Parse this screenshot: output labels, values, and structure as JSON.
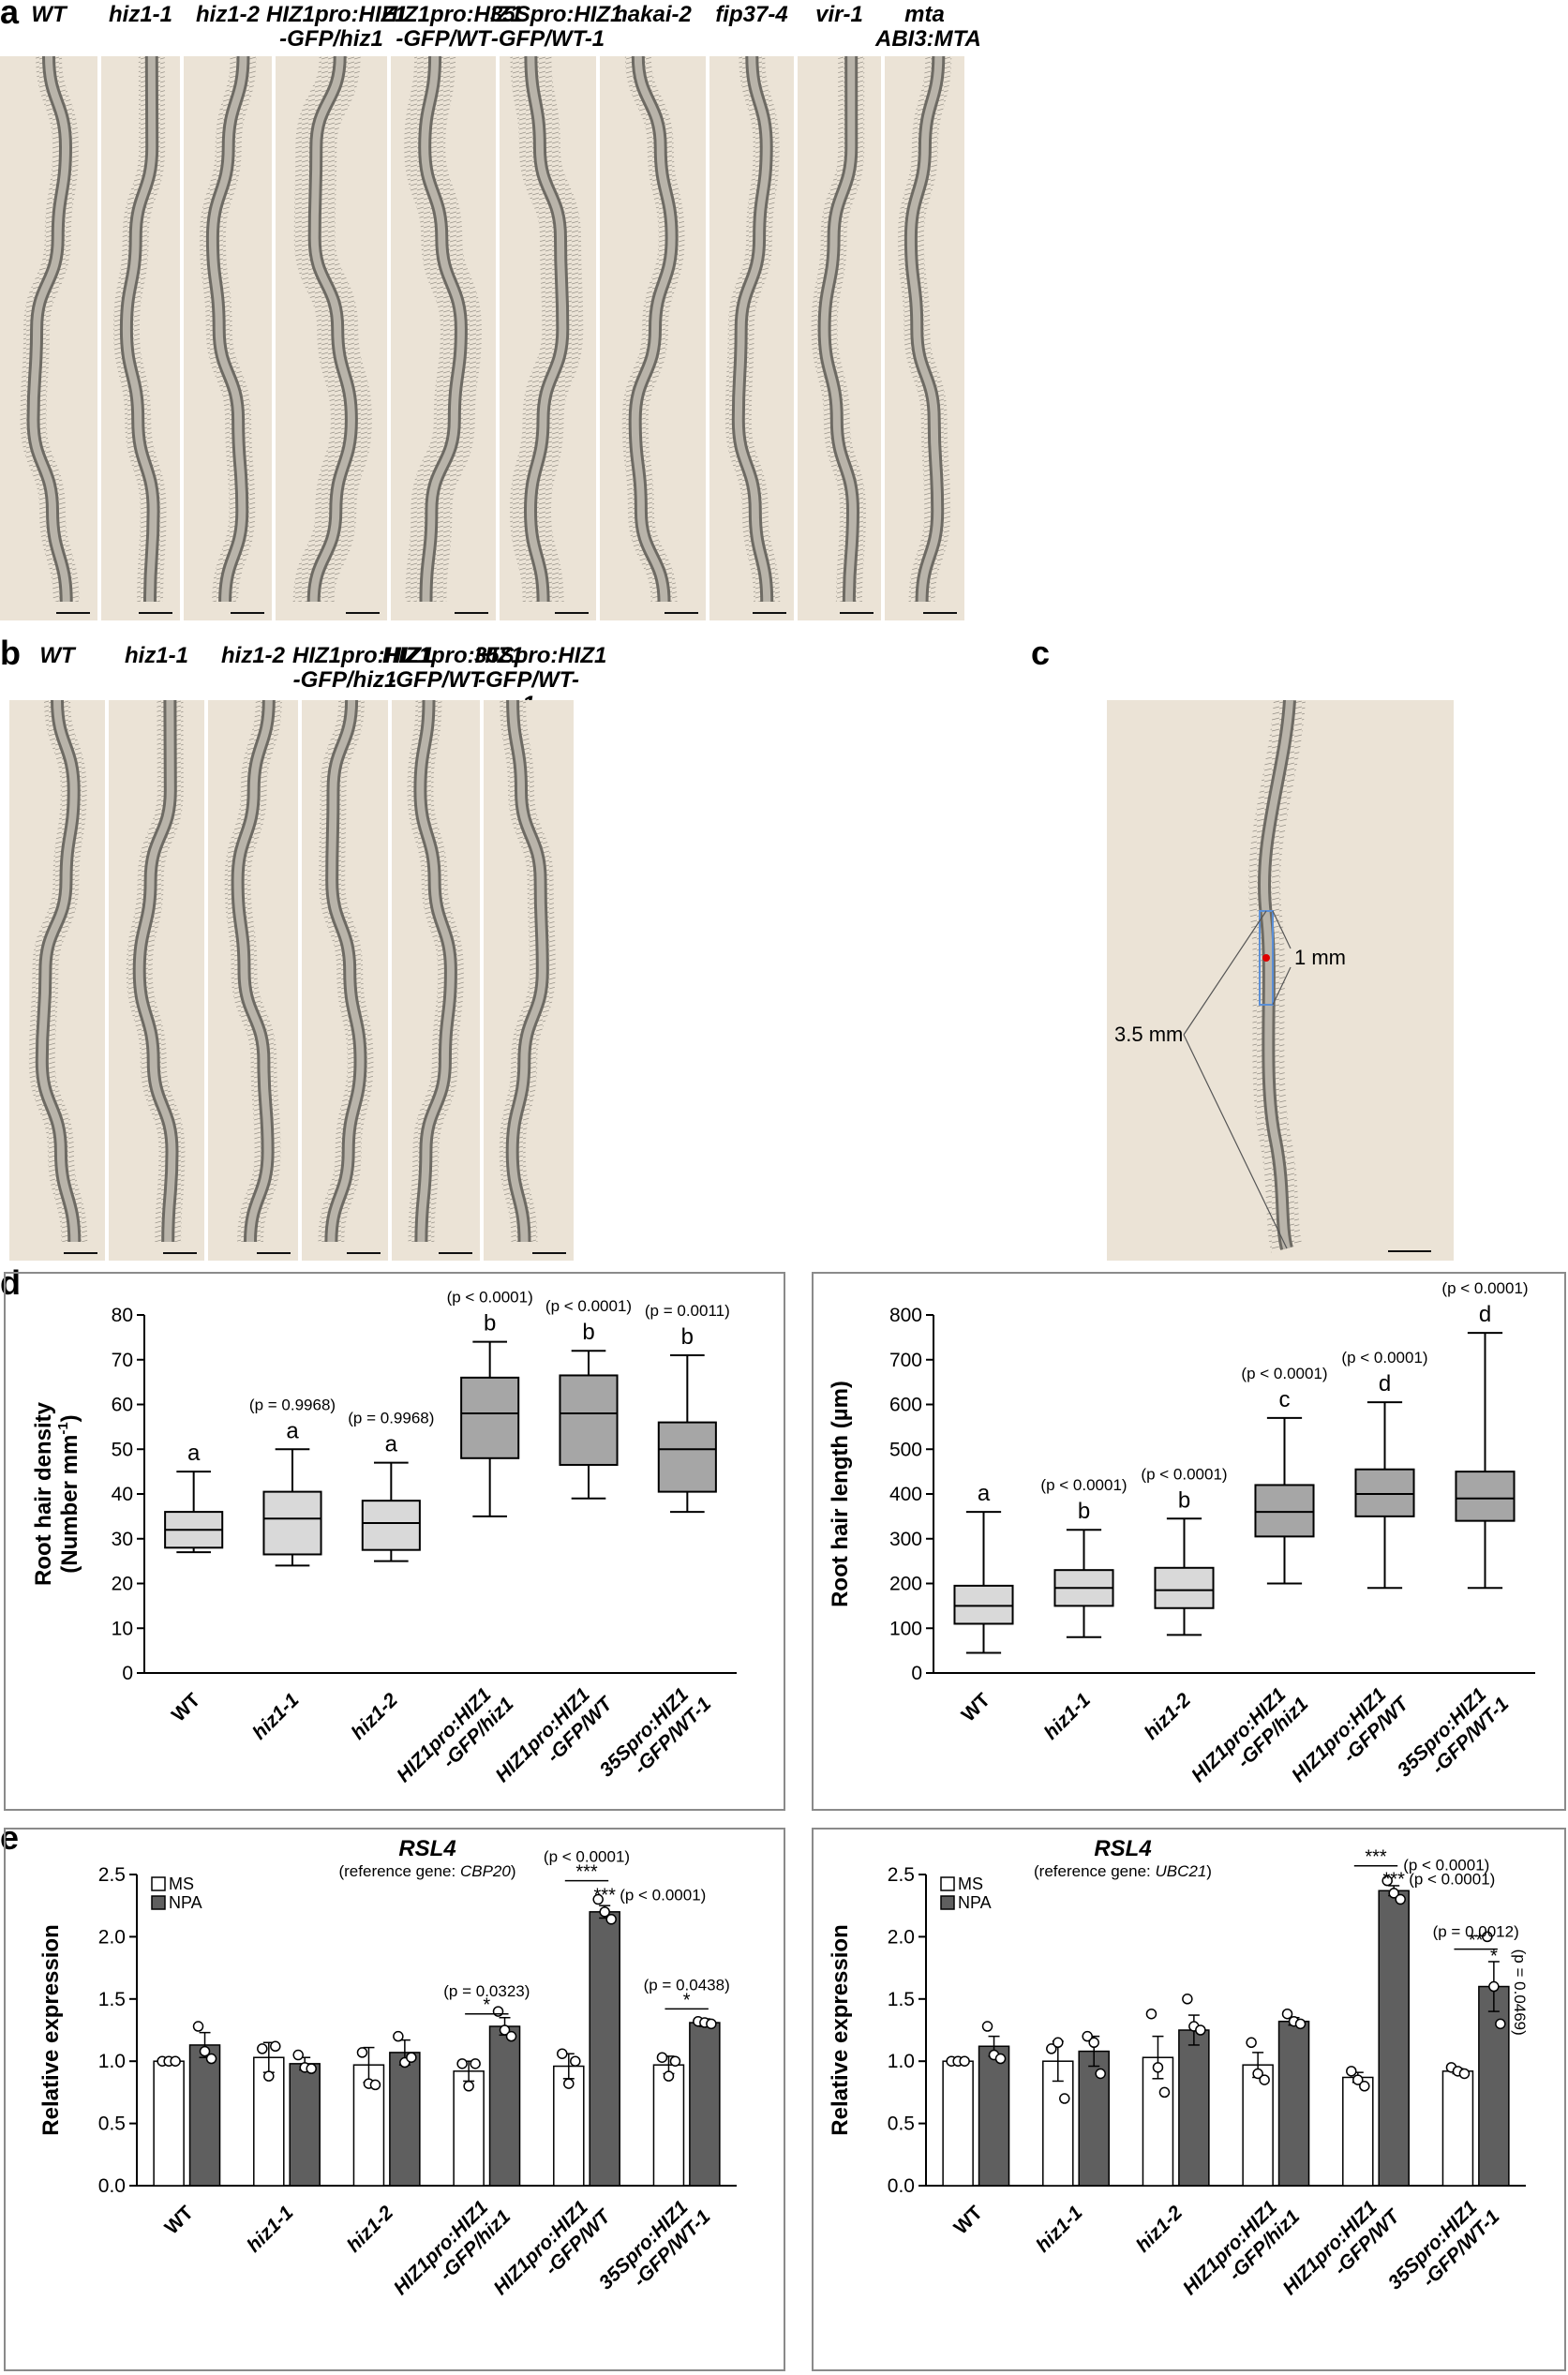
{
  "panels": {
    "a": {
      "label": "a",
      "titles": [
        [
          "WT",
          ""
        ],
        [
          "hiz1-1",
          ""
        ],
        [
          "hiz1-2",
          ""
        ],
        [
          "HIZ1pro:HIZ1",
          "-GFP/hiz1"
        ],
        [
          "HIZ1pro:HIZ1",
          "-GFP/WT"
        ],
        [
          "35Spro:HIZ1",
          "-GFP/WT-1"
        ],
        [
          "hakai-2",
          ""
        ],
        [
          "fip37-4",
          ""
        ],
        [
          "vir-1",
          ""
        ],
        [
          "mta",
          "ABI3:MTA"
        ]
      ]
    },
    "b": {
      "label": "b",
      "titles": [
        [
          "WT",
          ""
        ],
        [
          "hiz1-1",
          ""
        ],
        [
          "hiz1-2",
          ""
        ],
        [
          "HIZ1pro:HIZ1",
          "-GFP/hiz1"
        ],
        [
          "HIZ1pro:HIZ1",
          "-GFP/WT"
        ],
        [
          "35Spro:HIZ1",
          "-GFP/WT-1"
        ]
      ]
    },
    "c": {
      "label": "c",
      "annot_1mm": "1 mm",
      "annot_35mm": "3.5 mm"
    },
    "d": {
      "label": "d"
    },
    "e": {
      "label": "e"
    }
  },
  "chart_data": [
    {
      "type": "box",
      "ylabel_line1": "Root hair density",
      "ylabel_line2": "(Number mm",
      "ylabel_sup": "-1",
      "ylabel_close": ")",
      "ylim": [
        0,
        80
      ],
      "yticks": [
        "0",
        "10",
        "20",
        "30",
        "40",
        "50",
        "60",
        "70",
        "80"
      ],
      "categories": [
        [
          "WT",
          ""
        ],
        [
          "hiz1-1",
          ""
        ],
        [
          "hiz1-2",
          ""
        ],
        [
          "HIZ1pro:HIZ1",
          "-GFP/hiz1"
        ],
        [
          "HIZ1pro:HIZ1",
          "-GFP/WT"
        ],
        [
          "35Spro:HIZ1",
          "-GFP/WT-1"
        ]
      ],
      "boxes": [
        {
          "min": 27,
          "q1": 28,
          "median": 32,
          "q3": 36,
          "max": 45,
          "letter": "a",
          "p": ""
        },
        {
          "min": 24,
          "q1": 26.5,
          "median": 34.5,
          "q3": 40.5,
          "max": 50,
          "letter": "a",
          "p": "(p = 0.9968)"
        },
        {
          "min": 25,
          "q1": 27.5,
          "median": 33.5,
          "q3": 38.5,
          "max": 47,
          "letter": "a",
          "p": "(p = 0.9968)"
        },
        {
          "min": 35,
          "q1": 48,
          "median": 58,
          "q3": 66,
          "max": 74,
          "letter": "b",
          "p": "(p < 0.0001)"
        },
        {
          "min": 39,
          "q1": 46.5,
          "median": 58,
          "q3": 66.5,
          "max": 72,
          "letter": "b",
          "p": "(p < 0.0001)"
        },
        {
          "min": 36,
          "q1": 40.5,
          "median": 50,
          "q3": 56,
          "max": 71,
          "letter": "b",
          "p": "(p = 0.0011)"
        }
      ],
      "colors": {
        "light": "#d9d9d9",
        "dark": "#a6a6a6"
      }
    },
    {
      "type": "box",
      "ylabel": "Root hair length (µm)",
      "ylim": [
        0,
        800
      ],
      "yticks": [
        "0",
        "100",
        "200",
        "300",
        "400",
        "500",
        "600",
        "700",
        "800"
      ],
      "categories": [
        [
          "WT",
          ""
        ],
        [
          "hiz1-1",
          ""
        ],
        [
          "hiz1-2",
          ""
        ],
        [
          "HIZ1pro:HIZ1",
          "-GFP/hiz1"
        ],
        [
          "HIZ1pro:HIZ1",
          "-GFP/WT"
        ],
        [
          "35Spro:HIZ1",
          "-GFP/WT-1"
        ]
      ],
      "boxes": [
        {
          "min": 45,
          "q1": 110,
          "median": 150,
          "q3": 195,
          "max": 360,
          "letter": "a",
          "p": ""
        },
        {
          "min": 80,
          "q1": 150,
          "median": 190,
          "q3": 230,
          "max": 320,
          "letter": "b",
          "p": "(p < 0.0001)"
        },
        {
          "min": 85,
          "q1": 145,
          "median": 185,
          "q3": 235,
          "max": 345,
          "letter": "b",
          "p": "(p < 0.0001)"
        },
        {
          "min": 200,
          "q1": 305,
          "median": 360,
          "q3": 420,
          "max": 570,
          "letter": "c",
          "p": "(p < 0.0001)"
        },
        {
          "min": 190,
          "q1": 350,
          "median": 400,
          "q3": 455,
          "max": 605,
          "letter": "d",
          "p": "(p < 0.0001)"
        },
        {
          "min": 190,
          "q1": 340,
          "median": 390,
          "q3": 450,
          "max": 760,
          "letter": "d",
          "p": "(p < 0.0001)"
        }
      ],
      "colors": {
        "light": "#d9d9d9",
        "dark": "#a6a6a6"
      }
    },
    {
      "type": "bar",
      "title": "RSL4",
      "subtitle_pre": "(reference gene: ",
      "subtitle_gene": "CBP20",
      "subtitle_post": ")",
      "ylabel": "Relative expression",
      "ylim": [
        0,
        2.5
      ],
      "yticks": [
        "0.0",
        "0.5",
        "1.0",
        "1.5",
        "2.0",
        "2.5"
      ],
      "legend": [
        "MS",
        "NPA"
      ],
      "categories": [
        [
          "WT",
          ""
        ],
        [
          "hiz1-1",
          ""
        ],
        [
          "hiz1-2",
          ""
        ],
        [
          "HIZ1pro:HIZ1",
          "-GFP/hiz1"
        ],
        [
          "HIZ1pro:HIZ1",
          "-GFP/WT"
        ],
        [
          "35Spro:HIZ1",
          "-GFP/WT-1"
        ]
      ],
      "series": [
        {
          "name": "MS",
          "values": [
            1.0,
            1.03,
            0.97,
            0.92,
            0.96,
            0.97
          ],
          "err": [
            0.0,
            0.12,
            0.14,
            0.08,
            0.1,
            0.07
          ],
          "points": [
            [
              1,
              1,
              1
            ],
            [
              1.1,
              0.88,
              1.12
            ],
            [
              1.07,
              0.82,
              0.81
            ],
            [
              0.98,
              0.8,
              0.98
            ],
            [
              1.06,
              0.82,
              1.0
            ],
            [
              1.03,
              0.88,
              1.0
            ]
          ],
          "color": "#ffffff"
        },
        {
          "name": "NPA",
          "values": [
            1.13,
            0.98,
            1.07,
            1.28,
            2.2,
            1.31
          ],
          "err": [
            0.1,
            0.05,
            0.1,
            0.07,
            0.05,
            0.03
          ],
          "points": [
            [
              1.28,
              1.08,
              1.02
            ],
            [
              1.05,
              0.95,
              0.94
            ],
            [
              1.2,
              0.99,
              1.03
            ],
            [
              1.4,
              1.25,
              1.2
            ],
            [
              2.3,
              2.2,
              2.14
            ],
            [
              1.32,
              1.31,
              1.3
            ]
          ],
          "color": "#5f5f5f"
        }
      ],
      "annotations": [
        {
          "cat": 3,
          "type": "pair",
          "y": 1.38,
          "stars": "*",
          "p": "(p = 0.0323)",
          "py": 1.52
        },
        {
          "cat": 5,
          "type": "pair",
          "y": 1.42,
          "stars": "*",
          "p": "(p = 0.0438)",
          "py": 1.57
        },
        {
          "cat": 4,
          "type": "pair",
          "y": 2.45,
          "stars": "***",
          "p": "(p < 0.0001)",
          "py": 2.6
        },
        {
          "cat": 4,
          "type": "single",
          "y": 2.33,
          "stars": "***",
          "p": "(p < 0.0001)",
          "side": "right"
        }
      ]
    },
    {
      "type": "bar",
      "title": "RSL4",
      "subtitle_pre": "(reference gene: ",
      "subtitle_gene": "UBC21",
      "subtitle_post": ")",
      "ylabel": "Relative expression",
      "ylim": [
        0,
        2.5
      ],
      "yticks": [
        "0.0",
        "0.5",
        "1.0",
        "1.5",
        "2.0",
        "2.5"
      ],
      "legend": [
        "MS",
        "NPA"
      ],
      "categories": [
        [
          "WT",
          ""
        ],
        [
          "hiz1-1",
          ""
        ],
        [
          "hiz1-2",
          ""
        ],
        [
          "HIZ1pro:HIZ1",
          "-GFP/hiz1"
        ],
        [
          "HIZ1pro:HIZ1",
          "-GFP/WT"
        ],
        [
          "35Spro:HIZ1",
          "-GFP/WT-1"
        ]
      ],
      "series": [
        {
          "name": "MS",
          "values": [
            1.0,
            1.0,
            1.03,
            0.97,
            0.87,
            0.92
          ],
          "err": [
            0.0,
            0.16,
            0.17,
            0.1,
            0.04,
            0.02
          ],
          "points": [
            [
              1,
              1,
              1
            ],
            [
              1.1,
              1.15,
              0.7
            ],
            [
              1.38,
              0.95,
              0.75
            ],
            [
              1.15,
              0.9,
              0.85
            ],
            [
              0.92,
              0.85,
              0.8
            ],
            [
              0.95,
              0.92,
              0.9
            ]
          ],
          "color": "#ffffff"
        },
        {
          "name": "NPA",
          "values": [
            1.12,
            1.08,
            1.25,
            1.32,
            2.37,
            1.6
          ],
          "err": [
            0.08,
            0.12,
            0.12,
            0.03,
            0.04,
            0.2
          ],
          "points": [
            [
              1.28,
              1.05,
              1.02
            ],
            [
              1.2,
              1.15,
              0.9
            ],
            [
              1.5,
              1.28,
              1.25
            ],
            [
              1.38,
              1.32,
              1.3
            ],
            [
              2.45,
              2.35,
              2.3
            ],
            [
              2.0,
              1.6,
              1.3
            ]
          ],
          "color": "#5f5f5f"
        }
      ],
      "annotations": [
        {
          "cat": 4,
          "type": "pair",
          "y": 2.57,
          "stars": "***",
          "p": "(p < 0.0001)",
          "side": "right"
        },
        {
          "cat": 4,
          "type": "single",
          "y": 2.46,
          "stars": "***",
          "p": "(p < 0.0001)",
          "side": "right"
        },
        {
          "cat": 5,
          "type": "pair",
          "y": 1.9,
          "stars": "**",
          "p": "(p = 0.0012)",
          "py": 2.0
        },
        {
          "cat": 5,
          "type": "single",
          "y": 1.84,
          "stars": "*",
          "p": "(p = 0.0469)",
          "side": "vertical"
        }
      ]
    }
  ]
}
